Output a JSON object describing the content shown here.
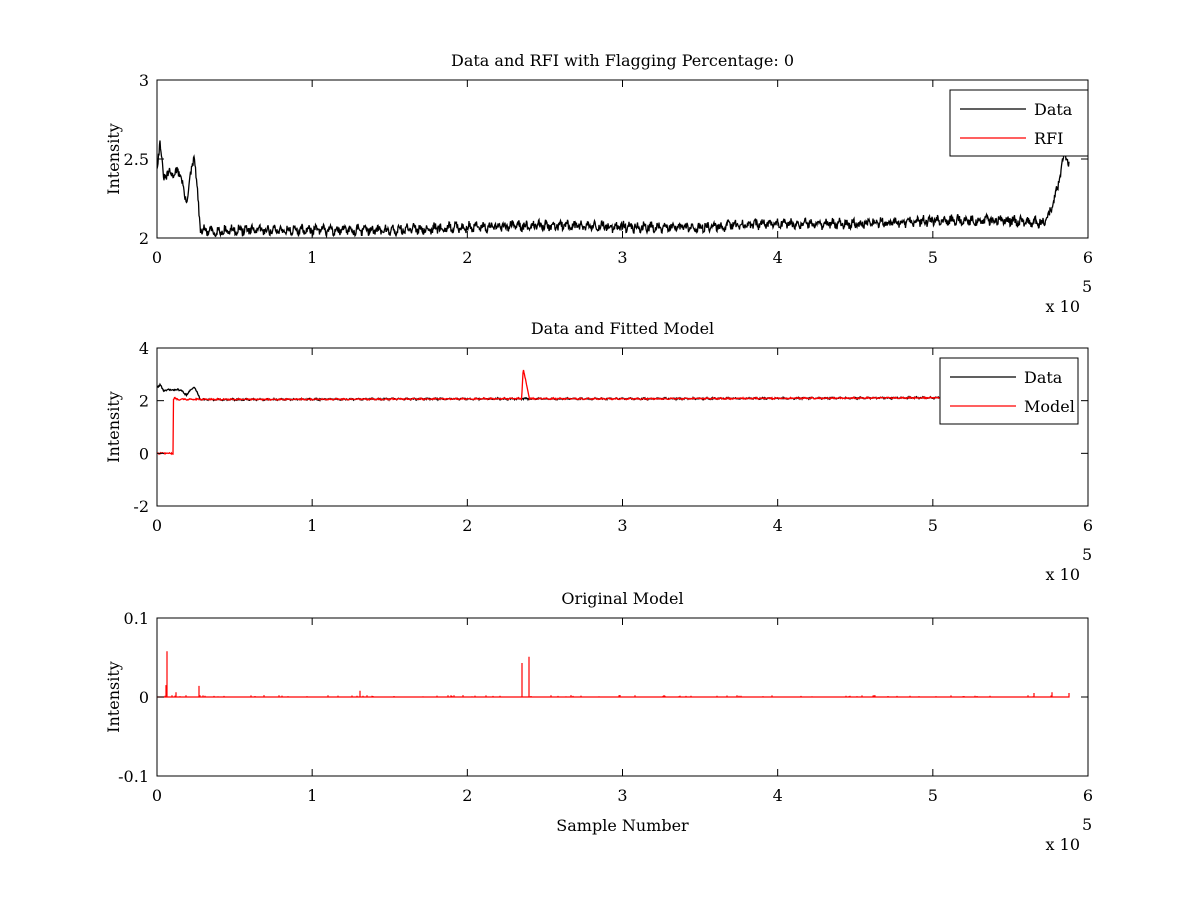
{
  "colors": {
    "data_line": "#000000",
    "rfi_line": "#ff0000",
    "background": "#ffffff"
  },
  "chart_data": [
    {
      "type": "line",
      "title": "Data and RFI with Flagging Percentage: 0",
      "xlabel": "",
      "ylabel": "Intensity",
      "xlim": [
        0,
        600000
      ],
      "ylim": [
        2,
        3
      ],
      "x_ticks": [
        "0",
        "1",
        "2",
        "3",
        "4",
        "5",
        "6"
      ],
      "y_ticks": [
        "3",
        "2.5",
        "2"
      ],
      "x_exponent": {
        "base": "x 10",
        "power": "5"
      },
      "legend": {
        "placement": "top-right",
        "entries": [
          "Data",
          "RFI"
        ]
      },
      "grid": false,
      "series": [
        {
          "name": "Data",
          "color": "#000000",
          "x": [
            0,
            2000,
            4000,
            6000,
            10000,
            15000,
            18000,
            19000,
            21000,
            24000,
            28000,
            35000,
            50000,
            100000,
            150000,
            200000,
            250000,
            300000,
            350000,
            400000,
            450000,
            500000,
            550000,
            570000,
            574000,
            580000,
            585000,
            588000
          ],
          "y": [
            2.45,
            2.62,
            2.38,
            2.4,
            2.41,
            2.42,
            2.25,
            2.24,
            2.35,
            2.53,
            2.05,
            2.04,
            2.05,
            2.05,
            2.05,
            2.07,
            2.08,
            2.07,
            2.07,
            2.09,
            2.09,
            2.11,
            2.11,
            2.1,
            2.12,
            2.3,
            2.55,
            2.45
          ],
          "noise": 0.025
        },
        {
          "name": "RFI",
          "color": "#ff0000",
          "x": [],
          "y": []
        }
      ]
    },
    {
      "type": "line",
      "title": "Data and Fitted Model",
      "xlabel": "",
      "ylabel": "Intensity",
      "xlim": [
        0,
        600000
      ],
      "ylim": [
        -2,
        4
      ],
      "x_ticks": [
        "0",
        "1",
        "2",
        "3",
        "4",
        "5",
        "6"
      ],
      "y_ticks": [
        "4",
        "2",
        "0",
        "-2"
      ],
      "x_exponent": {
        "base": "x 10",
        "power": "5"
      },
      "legend": {
        "placement": "top-right",
        "entries": [
          "Data",
          "Model"
        ]
      },
      "grid": false,
      "series": [
        {
          "name": "Data",
          "color": "#000000",
          "x": [
            0,
            2000,
            4000,
            6000,
            10000,
            15000,
            18000,
            19000,
            21000,
            24000,
            28000,
            35000,
            100000,
            200000,
            300000,
            400000,
            500000,
            570000
          ],
          "y": [
            2.5,
            2.62,
            2.38,
            2.4,
            2.41,
            2.42,
            2.25,
            2.24,
            2.35,
            2.53,
            2.05,
            2.04,
            2.05,
            2.07,
            2.07,
            2.09,
            2.11,
            2.1
          ],
          "noise": 0.025
        },
        {
          "name": "Model",
          "color": "#ff0000",
          "x": [
            0,
            10500,
            10600,
            11500,
            12000,
            13000,
            100000,
            200000,
            235000,
            236000,
            240000,
            300000,
            400000,
            500000,
            570000
          ],
          "y": [
            0,
            0,
            2.05,
            2.12,
            2.06,
            2.05,
            2.05,
            2.07,
            2.08,
            3.22,
            2.08,
            2.07,
            2.09,
            2.11,
            2.1
          ],
          "noise": 0.02
        }
      ]
    },
    {
      "type": "line",
      "title": "Original Model",
      "xlabel": "Sample Number",
      "ylabel": "Intensity",
      "xlim": [
        0,
        600000
      ],
      "ylim": [
        -0.1,
        0.1
      ],
      "x_ticks": [
        "0",
        "1",
        "2",
        "3",
        "4",
        "5",
        "6"
      ],
      "y_ticks": [
        "0.1",
        "0",
        "-0.1"
      ],
      "x_exponent": {
        "base": "x 10",
        "power": "5"
      },
      "legend": null,
      "grid": false,
      "series": [
        {
          "name": "",
          "color": "#ff0000",
          "x": [
            0,
            6000,
            6500,
            12000,
            27000,
            131000,
            235000,
            240000,
            565000,
            577000,
            588000
          ],
          "y": [
            0,
            0.015,
            0.058,
            0.006,
            0.014,
            0.008,
            0.043,
            0.051,
            0.005,
            0.006,
            0.005
          ],
          "spikes": true
        }
      ]
    }
  ]
}
